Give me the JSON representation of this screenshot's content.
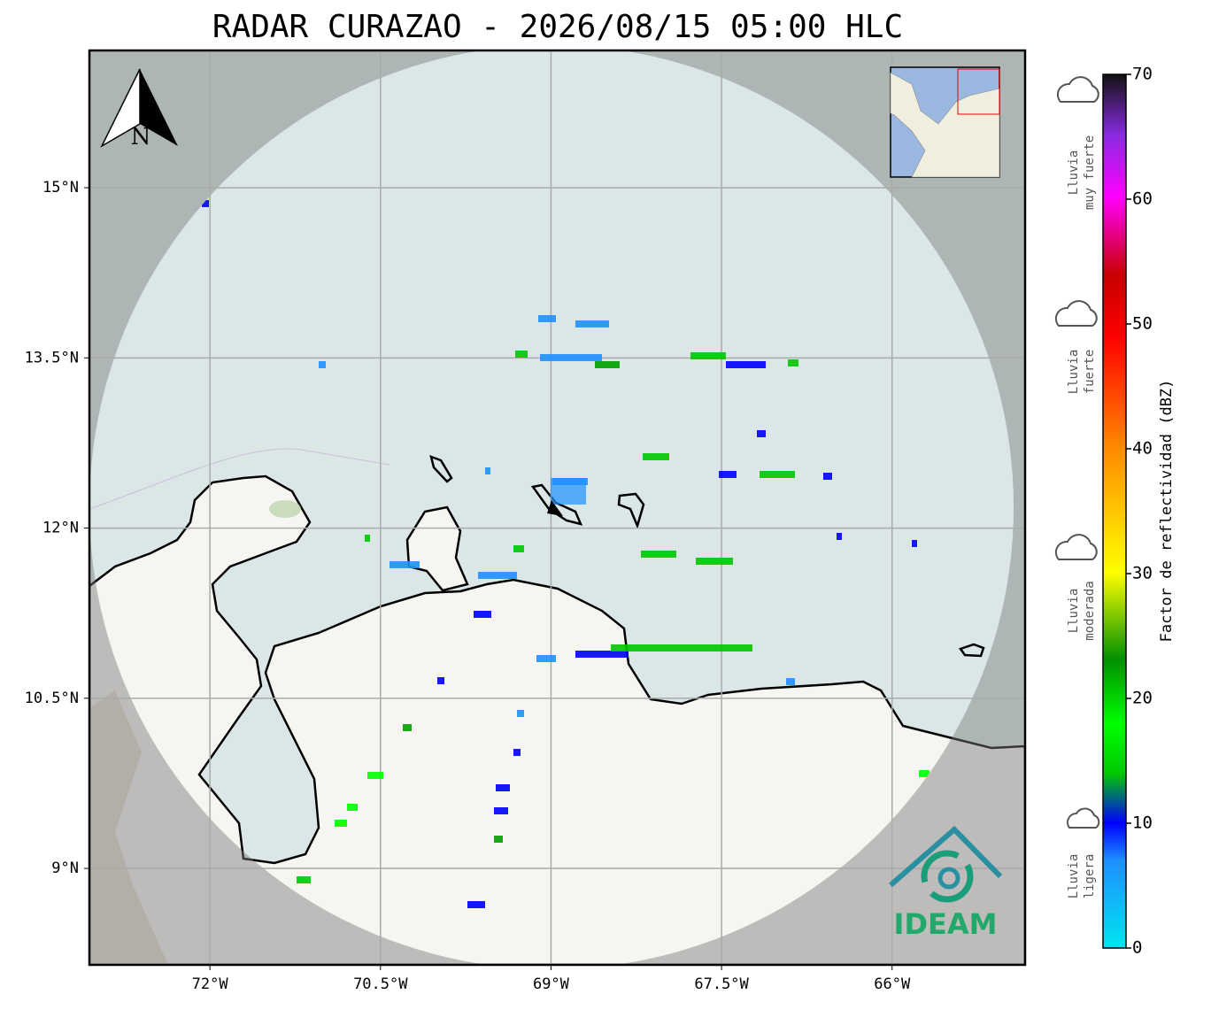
{
  "title": "RADAR CURAZAO - 2026/08/15 05:00 HLC",
  "map": {
    "xlim": [
      -73.06,
      -64.83
    ],
    "ylim": [
      8.15,
      16.21
    ],
    "xticks": [
      {
        "value": -72,
        "label": "72°W"
      },
      {
        "value": -70.5,
        "label": "70.5°W"
      },
      {
        "value": -69,
        "label": "69°W"
      },
      {
        "value": -67.5,
        "label": "67.5°W"
      },
      {
        "value": -66,
        "label": "66°W"
      }
    ],
    "yticks": [
      {
        "value": 9,
        "label": "9°N"
      },
      {
        "value": 10.5,
        "label": "10.5°N"
      },
      {
        "value": 12,
        "label": "12°N"
      },
      {
        "value": 13.5,
        "label": "13.5°N"
      },
      {
        "value": 15,
        "label": "15°N"
      }
    ],
    "north": "N"
  },
  "colorbar": {
    "label": "Factor de reflectividad (dBZ)",
    "lim": [
      0,
      70
    ],
    "ticks": [
      0,
      10,
      20,
      30,
      40,
      50,
      60,
      70
    ]
  },
  "rain_legend": [
    [
      "Lluvia",
      "muy fuerte"
    ],
    [
      "Lluvia",
      "fuerte"
    ],
    [
      "Lluvia",
      "moderada"
    ],
    [
      "Lluvia",
      "ligera"
    ]
  ],
  "logo": "IDEAM"
}
